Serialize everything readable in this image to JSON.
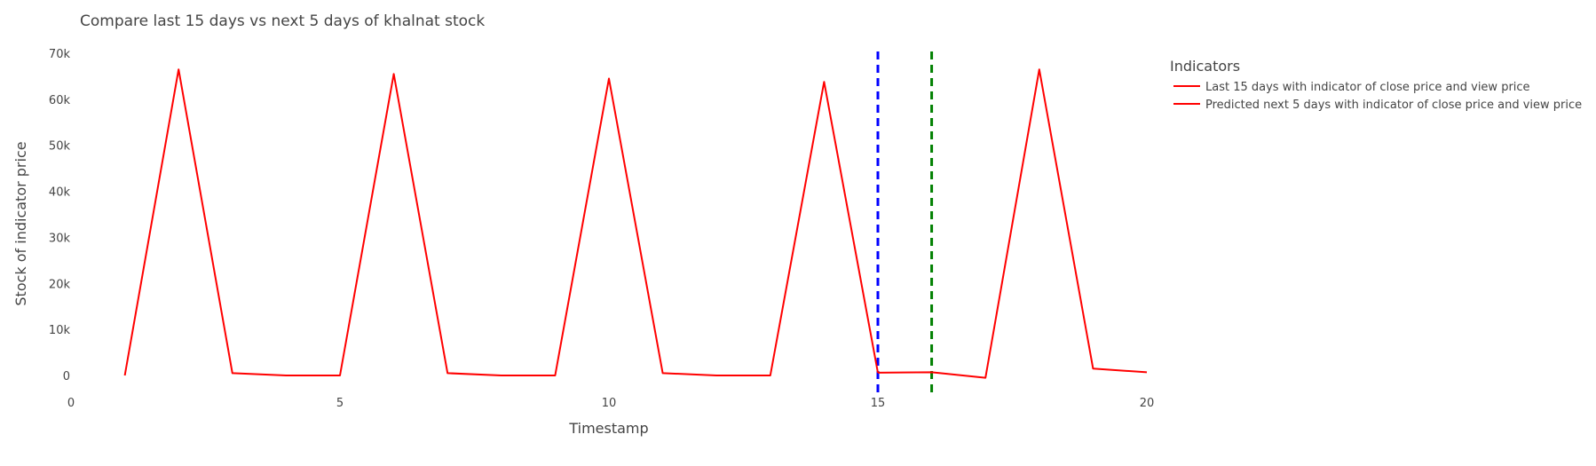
{
  "chart_data": {
    "type": "line",
    "title": "Compare last 15 days vs next 5 days of khalnat stock",
    "xlabel": "Timestamp",
    "ylabel": "Stock of indicator price",
    "xlim": [
      0,
      20
    ],
    "ylim": [
      -5000,
      70000
    ],
    "x_ticks": [
      {
        "value": 0,
        "label": "0"
      },
      {
        "value": 5,
        "label": "5"
      },
      {
        "value": 10,
        "label": "10"
      },
      {
        "value": 15,
        "label": "15"
      },
      {
        "value": 20,
        "label": "20"
      }
    ],
    "y_ticks": [
      {
        "value": 0,
        "label": "0"
      },
      {
        "value": 10000,
        "label": "10k"
      },
      {
        "value": 20000,
        "label": "20k"
      },
      {
        "value": 30000,
        "label": "30k"
      },
      {
        "value": 40000,
        "label": "40k"
      },
      {
        "value": 50000,
        "label": "50k"
      },
      {
        "value": 60000,
        "label": "60k"
      },
      {
        "value": 70000,
        "label": "70k"
      }
    ],
    "grid": false,
    "legend": {
      "title": "Indicators",
      "placement": "right"
    },
    "series": [
      {
        "name": "Last 15 days with indicator of close price and view price",
        "color": "#ff0000",
        "x": [
          1,
          2,
          3,
          4,
          5,
          6,
          7,
          8,
          9,
          10,
          11,
          12,
          13,
          14,
          15
        ],
        "y": [
          0,
          66500,
          500,
          0,
          0,
          65500,
          500,
          0,
          0,
          64500,
          500,
          0,
          0,
          63800,
          600
        ]
      },
      {
        "name": "Predicted next 5 days with indicator of close price and view price",
        "color": "#ff0000",
        "x": [
          15,
          16,
          17,
          18,
          19,
          20
        ],
        "y": [
          600,
          700,
          -500,
          66500,
          1500,
          700
        ]
      }
    ],
    "vertical_lines": [
      {
        "x": 15,
        "color": "#0000ff",
        "style": "dashed"
      },
      {
        "x": 16,
        "color": "#008000",
        "style": "dashed"
      }
    ]
  }
}
